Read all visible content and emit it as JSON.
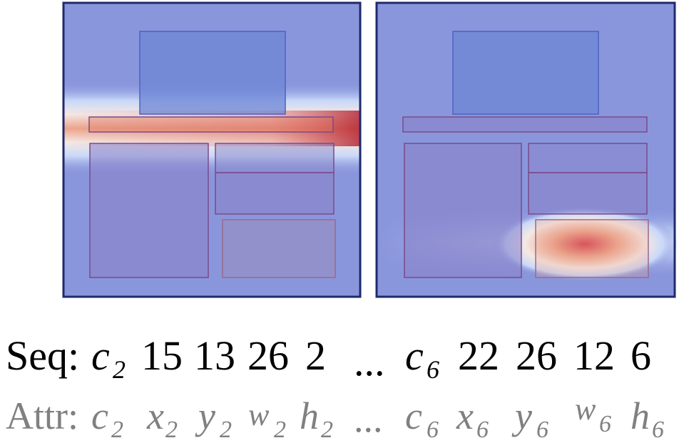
{
  "panels": [
    {
      "heat": "top-band",
      "boxes": [
        "image",
        "header",
        "left",
        "mid-top",
        "mid-bottom",
        "bottom-right"
      ]
    },
    {
      "heat": "bottom-right",
      "boxes": [
        "image",
        "header",
        "left",
        "mid-top",
        "mid-bottom",
        "bottom-right"
      ]
    }
  ],
  "colors": {
    "background": "#8a96dc",
    "border": "#1f2a6b",
    "image_box": "#6e86d6",
    "image_box_stroke": "#4a62c0",
    "element_box": "#8a82c8",
    "element_stroke": "#7a4a8a",
    "heat_hot": "#d23c3c",
    "heat_warm": "#f0b89a",
    "heat_pale": "#f4e8e4"
  },
  "seq": {
    "label": "Seq:",
    "c2_main": "c",
    "c2_sub": "2",
    "v1": "15",
    "v2": "13",
    "v3": "26",
    "v4": "2",
    "ellipsis": "...",
    "c6_main": "c",
    "c6_sub": "6",
    "v5": "22",
    "v6": "26",
    "v7": "12",
    "v8": "6"
  },
  "attr": {
    "label": "Attr:",
    "c2_main": "c",
    "c2_sub": "2",
    "x2_main": "x",
    "x2_sub": "2",
    "y2_main": "y",
    "y2_sub": "2",
    "w2_main": "w",
    "w2_sub": "2",
    "h2_main": "h",
    "h2_sub": "2",
    "ellipsis": "...",
    "c6_main": "c",
    "c6_sub": "6",
    "x6_main": "x",
    "x6_sub": "6",
    "y6_main": "y",
    "y6_sub": "6",
    "w6_main": "w",
    "w6_sub": "6",
    "h6_main": "h",
    "h6_sub": "6"
  }
}
